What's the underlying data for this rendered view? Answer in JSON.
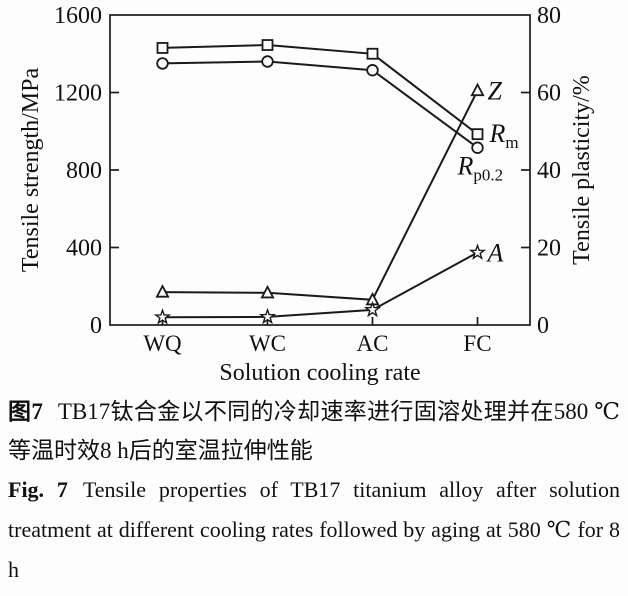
{
  "page": {
    "background": "#fdfdfd",
    "text_color": "#111111"
  },
  "chart_data": {
    "type": "line",
    "title": "",
    "categories": [
      "WQ",
      "WC",
      "AC",
      "FC"
    ],
    "xlabel": "Solution cooling rate",
    "grid": false,
    "line_color": "#1a1a1a",
    "marker_fill": "#fdfdfd",
    "left_axis": {
      "label": "Tensile strength/MPa",
      "ticks": [
        0,
        400,
        800,
        1200,
        1600
      ],
      "min": 0,
      "max": 1600
    },
    "right_axis": {
      "label": "Tensile plasticity/%",
      "ticks": [
        0,
        20,
        40,
        60,
        80
      ],
      "min": 0,
      "max": 80
    },
    "series": [
      {
        "name": "Rm",
        "label_base": "R",
        "label_sub": "m",
        "axis": "left",
        "marker": "square",
        "values": [
          1430,
          1445,
          1400,
          985
        ],
        "label_dx": 12,
        "label_dy": 8
      },
      {
        "name": "Rp02",
        "label_base": "R",
        "label_sub": "p0.2",
        "axis": "left",
        "marker": "circle",
        "values": [
          1350,
          1360,
          1315,
          915
        ],
        "label_dx": -20,
        "label_dy": 27
      },
      {
        "name": "Z",
        "label_base": "Z",
        "label_sub": "",
        "axis": "right",
        "marker": "triangle",
        "values": [
          8.5,
          8.3,
          6.5,
          60.5
        ],
        "label_dx": 10,
        "label_dy": 9
      },
      {
        "name": "A",
        "label_base": "A",
        "label_sub": "",
        "axis": "right",
        "marker": "star",
        "values": [
          2.0,
          2.1,
          3.9,
          18.7
        ],
        "label_dx": 10,
        "label_dy": 9
      }
    ],
    "legend_position": "inline-right-of-last-point"
  },
  "caption": {
    "zh_label": "图7",
    "zh_text": "TB17钛合金以不同的冷却速率进行固溶处理并在580 ℃等温时效8 h后的室温拉伸性能",
    "en_label": "Fig. 7",
    "en_text": "Tensile properties of TB17 titanium alloy after solution treatment at different cooling rates followed by aging at 580 ℃ for 8 h"
  }
}
